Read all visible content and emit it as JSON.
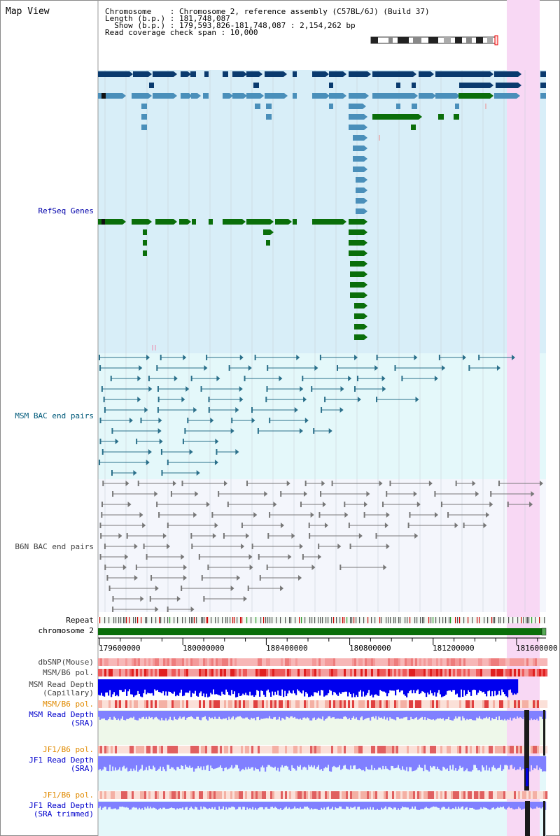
{
  "header": {
    "title": "Map View",
    "chromosome_line": "Chromosome    : Chromosome 2, reference assembly (C57BL/6J) (Build 37)",
    "length_line": "Length (b.p.) : 181,748,087",
    "show_line": "  Show (b.p.) : 179,593,826-181,748,087 : 2,154,262 bp",
    "coverage_line": "Read coverage check span : 10,000"
  },
  "tracks": {
    "refseq": "RefSeq Genes",
    "msm_bac": "MSM BAC end pairs",
    "b6n_bac": "B6N BAC end pairs",
    "repeat": "Repeat",
    "chromosome": "chromosome 2",
    "dbsnp": "dbSNP(Mouse)",
    "msm_pol_1": "MSM/B6 pol.",
    "msm_depth_cap_1": "MSM Read Depth",
    "msm_depth_cap_2": "(Capillary)",
    "msm_pol_2": "MSM/B6 pol.",
    "msm_depth_sra_1": "MSM Read Depth",
    "msm_depth_sra_2": "(SRA)",
    "jf1_pol_1": "JF1/B6 pol.",
    "jf1_depth_sra_1": "JF1 Read Depth",
    "jf1_depth_sra_2": "(SRA)",
    "jf1_pol_2": "JF1/B6 pol.",
    "jf1_depth_trim_1": "JF1 Read Depth",
    "jf1_depth_trim_2": "(SRA trimmed)"
  },
  "axis": {
    "ticks": [
      "179600000",
      "180000000",
      "180400000",
      "180800000",
      "181200000",
      "181600000"
    ]
  },
  "colors": {
    "refseq_bg": "#d8eef8",
    "msm_bg": "#e4f8fa",
    "b6n_bg": "#f4f6fc",
    "highlight": "#f8d8f4",
    "gene_dark": "#0a3a6e",
    "gene_mid": "#4a8fba",
    "gene_green": "#0a6e0a",
    "chrom_green": "#0a6e0a",
    "bac_teal": "#2a6f8a",
    "bac_gray": "#777777",
    "depth_blue": "#0000ee",
    "depth_light": "#8080ff"
  }
}
